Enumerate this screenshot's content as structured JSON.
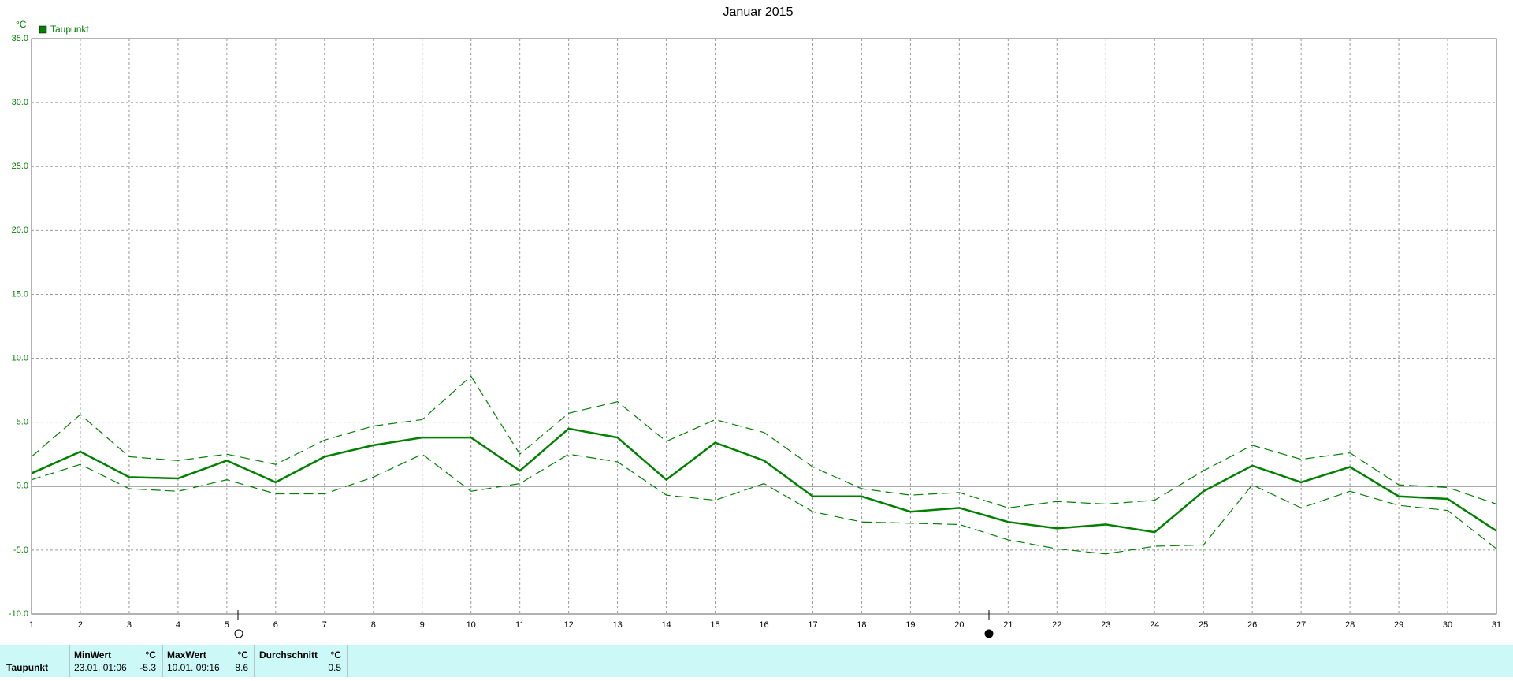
{
  "chart_data": {
    "type": "line",
    "title": "Januar 2015",
    "y_label": "°C",
    "x": [
      1,
      2,
      3,
      4,
      5,
      6,
      7,
      8,
      9,
      10,
      11,
      12,
      13,
      14,
      15,
      16,
      17,
      18,
      19,
      20,
      21,
      22,
      23,
      24,
      25,
      26,
      27,
      28,
      29,
      30,
      31
    ],
    "xlim": [
      1,
      31
    ],
    "xticks": [
      1,
      2,
      3,
      4,
      5,
      6,
      7,
      8,
      9,
      10,
      11,
      12,
      13,
      14,
      15,
      16,
      17,
      18,
      19,
      20,
      21,
      22,
      23,
      24,
      25,
      26,
      27,
      28,
      29,
      30,
      31
    ],
    "ylim": [
      -10,
      35
    ],
    "yticks": [
      {
        "value": -10,
        "label": "-10.0"
      },
      {
        "value": -5,
        "label": "-5.0"
      },
      {
        "value": 0,
        "label": "0.0"
      },
      {
        "value": 5,
        "label": "5.0"
      },
      {
        "value": 10,
        "label": "10.0"
      },
      {
        "value": 15,
        "label": "15.0"
      },
      {
        "value": 20,
        "label": "20.0"
      },
      {
        "value": 25,
        "label": "25.0"
      },
      {
        "value": 30,
        "label": "30.0"
      },
      {
        "value": 35,
        "label": "35.0"
      }
    ],
    "grid": true,
    "series": [
      {
        "name": "Taupunkt",
        "color": "#008000",
        "values": [
          1.0,
          2.7,
          0.7,
          0.6,
          2.0,
          0.3,
          2.3,
          3.2,
          3.8,
          3.8,
          1.2,
          4.5,
          3.8,
          0.5,
          3.4,
          2.0,
          -0.8,
          -0.8,
          -2.0,
          -1.7,
          -2.8,
          -3.3,
          -3.0,
          -3.6,
          -0.4,
          1.6,
          0.3,
          1.5,
          -0.8,
          -1.0,
          -3.5
        ]
      },
      {
        "color": "#008000",
        "dashed": true,
        "values": [
          2.3,
          5.6,
          2.3,
          2.0,
          2.5,
          1.7,
          3.6,
          4.7,
          5.2,
          8.6,
          2.5,
          5.7,
          6.6,
          3.5,
          5.2,
          4.2,
          1.5,
          -0.2,
          -0.7,
          -0.5,
          -1.7,
          -1.2,
          -1.4,
          -1.1,
          1.2,
          3.2,
          2.1,
          2.6,
          0.1,
          -0.1,
          -1.4
        ]
      },
      {
        "color": "#008000",
        "dashed": true,
        "values": [
          0.5,
          1.7,
          -0.2,
          -0.4,
          0.5,
          -0.6,
          -0.6,
          0.7,
          2.5,
          -0.4,
          0.2,
          2.5,
          1.9,
          -0.7,
          -1.1,
          0.2,
          -2.0,
          -2.8,
          -2.9,
          -3.0,
          -4.2,
          -4.9,
          -5.3,
          -4.7,
          -4.6,
          0.1,
          -1.7,
          -0.4,
          -1.5,
          -1.9,
          -4.9
        ]
      }
    ]
  },
  "stats": {
    "row_label": "Taupunkt",
    "min": {
      "header": "MinWert",
      "unit": "°C",
      "when": "23.01.  01:06",
      "value": "-5.3"
    },
    "max": {
      "header": "MaxWert",
      "unit": "°C",
      "when": "10.01.  09:16",
      "value": "8.6"
    },
    "avg": {
      "header": "Durchschnitt",
      "unit": "°C",
      "value": "0.5"
    }
  }
}
